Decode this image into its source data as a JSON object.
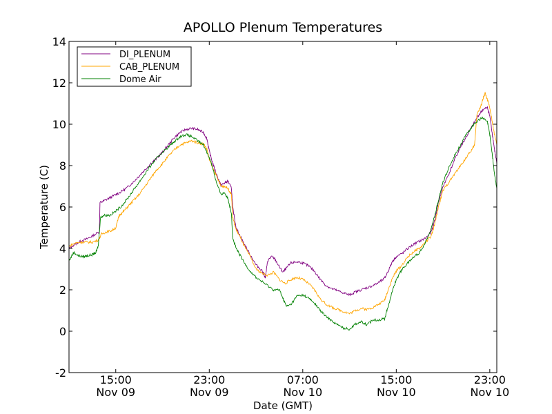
{
  "chart_data": {
    "type": "line",
    "title": "APOLLO Plenum Temperatures",
    "xlabel": "Date (GMT)",
    "ylabel": "Temperature (C)",
    "xlim": [
      11,
      47.6
    ],
    "ylim": [
      -2,
      14
    ],
    "yticks": [
      -2,
      0,
      2,
      4,
      6,
      8,
      10,
      12,
      14
    ],
    "xticks": [
      {
        "hour": 15,
        "time": "15:00",
        "date": "Nov 09"
      },
      {
        "hour": 23,
        "time": "23:00",
        "date": "Nov 09"
      },
      {
        "hour": 31,
        "time": "07:00",
        "date": "Nov 10"
      },
      {
        "hour": 39,
        "time": "15:00",
        "date": "Nov 10"
      },
      {
        "hour": 47,
        "time": "23:00",
        "date": "Nov 10"
      }
    ],
    "legend_position": "top-left",
    "series": [
      {
        "name": "DI_PLENUM",
        "color": "#800080",
        "points": [
          [
            11.0,
            4.0
          ],
          [
            11.5,
            4.2
          ],
          [
            12.0,
            4.35
          ],
          [
            12.5,
            4.45
          ],
          [
            13.0,
            4.6
          ],
          [
            13.6,
            4.8
          ],
          [
            13.65,
            6.2
          ],
          [
            14.0,
            6.3
          ],
          [
            14.5,
            6.45
          ],
          [
            15.0,
            6.6
          ],
          [
            15.5,
            6.75
          ],
          [
            16.0,
            6.95
          ],
          [
            16.5,
            7.2
          ],
          [
            17.0,
            7.5
          ],
          [
            17.5,
            7.8
          ],
          [
            18.0,
            8.1
          ],
          [
            18.5,
            8.35
          ],
          [
            19.0,
            8.65
          ],
          [
            19.5,
            9.0
          ],
          [
            20.0,
            9.35
          ],
          [
            20.5,
            9.6
          ],
          [
            21.0,
            9.75
          ],
          [
            21.5,
            9.8
          ],
          [
            22.0,
            9.75
          ],
          [
            22.5,
            9.6
          ],
          [
            22.8,
            9.3
          ],
          [
            23.0,
            8.7
          ],
          [
            23.3,
            8.1
          ],
          [
            23.6,
            7.6
          ],
          [
            24.0,
            7.05
          ],
          [
            24.3,
            7.15
          ],
          [
            24.6,
            7.25
          ],
          [
            24.9,
            6.9
          ],
          [
            25.0,
            6.0
          ],
          [
            25.3,
            5.0
          ],
          [
            25.6,
            4.65
          ],
          [
            26.0,
            4.2
          ],
          [
            26.5,
            3.7
          ],
          [
            27.0,
            3.2
          ],
          [
            27.5,
            2.95
          ],
          [
            27.8,
            2.6
          ],
          [
            28.0,
            3.4
          ],
          [
            28.3,
            3.6
          ],
          [
            28.6,
            3.5
          ],
          [
            29.0,
            3.1
          ],
          [
            29.3,
            2.85
          ],
          [
            29.6,
            3.05
          ],
          [
            30.0,
            3.3
          ],
          [
            30.5,
            3.35
          ],
          [
            31.0,
            3.3
          ],
          [
            31.5,
            3.15
          ],
          [
            32.0,
            2.9
          ],
          [
            32.5,
            2.5
          ],
          [
            33.0,
            2.2
          ],
          [
            33.5,
            2.05
          ],
          [
            34.0,
            1.95
          ],
          [
            34.5,
            1.85
          ],
          [
            35.0,
            1.75
          ],
          [
            35.5,
            1.9
          ],
          [
            36.0,
            2.0
          ],
          [
            36.5,
            2.1
          ],
          [
            37.0,
            2.2
          ],
          [
            37.5,
            2.35
          ],
          [
            38.0,
            2.55
          ],
          [
            38.3,
            2.9
          ],
          [
            38.7,
            3.4
          ],
          [
            39.0,
            3.6
          ],
          [
            39.5,
            3.75
          ],
          [
            40.0,
            4.0
          ],
          [
            40.5,
            4.2
          ],
          [
            41.0,
            4.35
          ],
          [
            41.5,
            4.5
          ],
          [
            42.0,
            4.8
          ],
          [
            42.3,
            5.4
          ],
          [
            42.6,
            6.2
          ],
          [
            43.0,
            7.0
          ],
          [
            43.5,
            7.6
          ],
          [
            44.0,
            8.3
          ],
          [
            44.5,
            8.9
          ],
          [
            45.0,
            9.4
          ],
          [
            45.5,
            9.9
          ],
          [
            46.0,
            10.4
          ],
          [
            46.4,
            10.7
          ],
          [
            46.8,
            10.8
          ],
          [
            47.0,
            10.4
          ],
          [
            47.2,
            9.6
          ],
          [
            47.4,
            8.8
          ],
          [
            47.6,
            8.1
          ]
        ]
      },
      {
        "name": "CAB_PLENUM",
        "color": "#FFA500",
        "points": [
          [
            11.0,
            4.1
          ],
          [
            11.5,
            4.25
          ],
          [
            12.0,
            4.3
          ],
          [
            12.5,
            4.3
          ],
          [
            13.0,
            4.3
          ],
          [
            13.5,
            4.4
          ],
          [
            13.8,
            4.7
          ],
          [
            14.2,
            4.8
          ],
          [
            14.6,
            4.85
          ],
          [
            15.0,
            5.0
          ],
          [
            15.3,
            5.6
          ],
          [
            15.6,
            5.75
          ],
          [
            16.0,
            6.0
          ],
          [
            16.5,
            6.3
          ],
          [
            17.0,
            6.6
          ],
          [
            17.5,
            7.0
          ],
          [
            18.0,
            7.4
          ],
          [
            18.5,
            7.8
          ],
          [
            19.0,
            8.1
          ],
          [
            19.5,
            8.45
          ],
          [
            20.0,
            8.75
          ],
          [
            20.5,
            9.0
          ],
          [
            21.0,
            9.1
          ],
          [
            21.5,
            9.2
          ],
          [
            22.0,
            9.1
          ],
          [
            22.5,
            9.05
          ],
          [
            22.8,
            8.8
          ],
          [
            23.0,
            8.3
          ],
          [
            23.3,
            7.9
          ],
          [
            23.6,
            7.5
          ],
          [
            24.0,
            7.0
          ],
          [
            24.3,
            7.0
          ],
          [
            24.6,
            6.9
          ],
          [
            24.9,
            6.6
          ],
          [
            25.0,
            5.5
          ],
          [
            25.3,
            4.9
          ],
          [
            25.6,
            4.6
          ],
          [
            26.0,
            4.1
          ],
          [
            26.5,
            3.6
          ],
          [
            27.0,
            3.0
          ],
          [
            27.5,
            2.8
          ],
          [
            28.0,
            2.7
          ],
          [
            28.5,
            2.85
          ],
          [
            29.0,
            2.5
          ],
          [
            29.5,
            2.3
          ],
          [
            30.0,
            2.5
          ],
          [
            30.5,
            2.6
          ],
          [
            31.0,
            2.5
          ],
          [
            31.5,
            2.3
          ],
          [
            32.0,
            2.0
          ],
          [
            32.5,
            1.55
          ],
          [
            33.0,
            1.3
          ],
          [
            33.5,
            1.15
          ],
          [
            34.0,
            1.05
          ],
          [
            34.5,
            0.95
          ],
          [
            35.0,
            0.85
          ],
          [
            35.5,
            1.0
          ],
          [
            36.0,
            1.1
          ],
          [
            36.5,
            1.05
          ],
          [
            37.0,
            1.15
          ],
          [
            37.5,
            1.3
          ],
          [
            38.0,
            1.5
          ],
          [
            38.3,
            2.0
          ],
          [
            38.7,
            2.6
          ],
          [
            39.0,
            2.9
          ],
          [
            39.5,
            3.2
          ],
          [
            40.0,
            3.6
          ],
          [
            40.5,
            3.85
          ],
          [
            41.0,
            4.0
          ],
          [
            41.5,
            4.3
          ],
          [
            42.0,
            4.6
          ],
          [
            42.3,
            5.2
          ],
          [
            42.6,
            6.0
          ],
          [
            43.0,
            6.8
          ],
          [
            43.5,
            7.2
          ],
          [
            44.0,
            7.6
          ],
          [
            44.5,
            8.0
          ],
          [
            45.0,
            8.4
          ],
          [
            45.5,
            8.8
          ],
          [
            45.7,
            9.0
          ],
          [
            45.9,
            10.5
          ],
          [
            46.2,
            10.8
          ],
          [
            46.4,
            11.2
          ],
          [
            46.6,
            11.5
          ],
          [
            46.9,
            11.0
          ],
          [
            47.1,
            10.5
          ],
          [
            47.3,
            9.8
          ],
          [
            47.6,
            9.0
          ]
        ]
      },
      {
        "name": "Dome Air",
        "color": "#008000",
        "points": [
          [
            11.0,
            3.4
          ],
          [
            11.4,
            3.8
          ],
          [
            11.8,
            3.65
          ],
          [
            12.2,
            3.6
          ],
          [
            12.6,
            3.65
          ],
          [
            13.0,
            3.7
          ],
          [
            13.3,
            3.8
          ],
          [
            13.5,
            4.1
          ],
          [
            13.7,
            5.5
          ],
          [
            14.0,
            5.6
          ],
          [
            14.5,
            5.6
          ],
          [
            15.0,
            5.8
          ],
          [
            15.5,
            6.05
          ],
          [
            16.0,
            6.4
          ],
          [
            16.5,
            6.8
          ],
          [
            17.0,
            7.2
          ],
          [
            17.5,
            7.6
          ],
          [
            18.0,
            8.0
          ],
          [
            18.5,
            8.35
          ],
          [
            19.0,
            8.65
          ],
          [
            19.5,
            8.9
          ],
          [
            20.0,
            9.15
          ],
          [
            20.5,
            9.4
          ],
          [
            21.0,
            9.5
          ],
          [
            21.5,
            9.4
          ],
          [
            22.0,
            9.2
          ],
          [
            22.5,
            9.0
          ],
          [
            23.0,
            8.4
          ],
          [
            23.3,
            7.9
          ],
          [
            23.6,
            7.2
          ],
          [
            24.0,
            6.6
          ],
          [
            24.3,
            6.7
          ],
          [
            24.6,
            6.4
          ],
          [
            24.9,
            5.7
          ],
          [
            25.0,
            4.5
          ],
          [
            25.3,
            4.0
          ],
          [
            25.6,
            3.7
          ],
          [
            26.0,
            3.3
          ],
          [
            26.5,
            2.9
          ],
          [
            27.0,
            2.6
          ],
          [
            27.5,
            2.4
          ],
          [
            28.0,
            2.2
          ],
          [
            28.5,
            2.0
          ],
          [
            29.0,
            2.0
          ],
          [
            29.3,
            1.6
          ],
          [
            29.6,
            1.2
          ],
          [
            30.0,
            1.3
          ],
          [
            30.5,
            1.7
          ],
          [
            31.0,
            1.75
          ],
          [
            31.5,
            1.6
          ],
          [
            32.0,
            1.35
          ],
          [
            32.5,
            1.0
          ],
          [
            33.0,
            0.7
          ],
          [
            33.5,
            0.5
          ],
          [
            34.0,
            0.3
          ],
          [
            34.5,
            0.15
          ],
          [
            35.0,
            0.1
          ],
          [
            35.5,
            0.35
          ],
          [
            36.0,
            0.45
          ],
          [
            36.5,
            0.3
          ],
          [
            37.0,
            0.55
          ],
          [
            37.5,
            0.55
          ],
          [
            38.0,
            0.6
          ],
          [
            38.3,
            1.2
          ],
          [
            38.7,
            2.0
          ],
          [
            39.0,
            2.5
          ],
          [
            39.5,
            3.0
          ],
          [
            40.0,
            3.3
          ],
          [
            40.5,
            3.6
          ],
          [
            41.0,
            3.8
          ],
          [
            41.5,
            4.3
          ],
          [
            42.0,
            5.0
          ],
          [
            42.3,
            5.6
          ],
          [
            42.6,
            6.3
          ],
          [
            43.0,
            7.2
          ],
          [
            43.5,
            7.9
          ],
          [
            44.0,
            8.5
          ],
          [
            44.5,
            9.0
          ],
          [
            45.0,
            9.5
          ],
          [
            45.5,
            9.9
          ],
          [
            46.0,
            10.2
          ],
          [
            46.4,
            10.3
          ],
          [
            46.8,
            10.1
          ],
          [
            47.0,
            9.5
          ],
          [
            47.2,
            8.6
          ],
          [
            47.4,
            7.6
          ],
          [
            47.6,
            6.9
          ]
        ]
      }
    ]
  }
}
